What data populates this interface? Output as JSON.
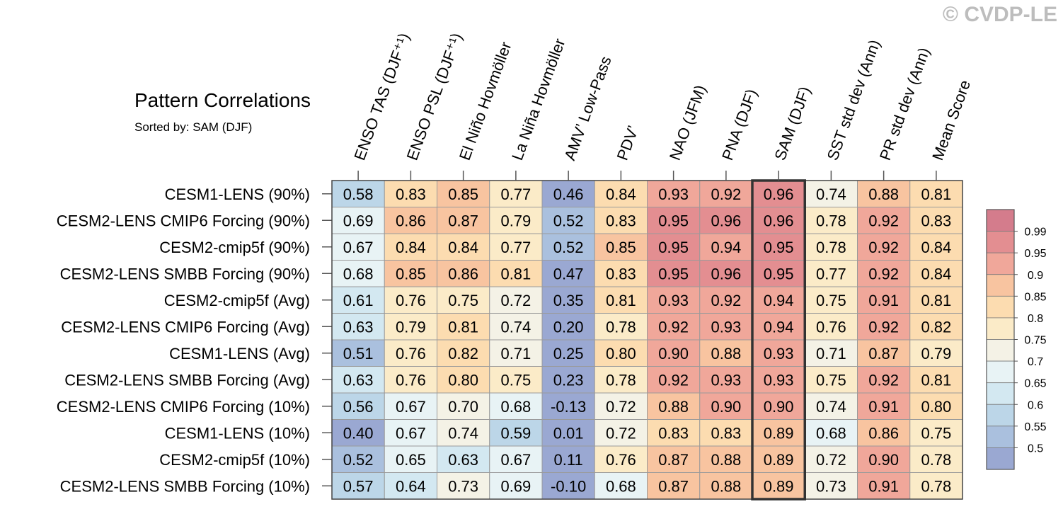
{
  "watermark": "© CVDP-LE",
  "title": "Pattern Correlations",
  "subtitle": "Sorted by: SAM (DJF)",
  "chart_data": {
    "type": "heatmap",
    "highlight_column": "SAM (DJF)",
    "columns": [
      "ENSO TAS (DJF⁺¹)",
      "ENSO PSL (DJF⁺¹)",
      "El Niño Hovmöller",
      "La Niña Hovmöller",
      "AMV’ Low-Pass",
      "PDV’",
      "NAO (JFM)",
      "PNA (DJF)",
      "SAM (DJF)",
      "SST std dev (Ann)",
      "PR std dev (Ann)",
      "Mean Score"
    ],
    "rows": [
      {
        "label": "CESM1-LENS (90%)",
        "values": [
          "0.58",
          "0.83",
          "0.85",
          "0.77",
          "0.46",
          "0.84",
          "0.93",
          "0.92",
          "0.96",
          "0.74",
          "0.88",
          "0.81"
        ]
      },
      {
        "label": "CESM2-LENS CMIP6 Forcing (90%)",
        "values": [
          "0.69",
          "0.86",
          "0.87",
          "0.79",
          "0.52",
          "0.83",
          "0.95",
          "0.96",
          "0.96",
          "0.78",
          "0.92",
          "0.83"
        ]
      },
      {
        "label": "CESM2-cmip5f (90%)",
        "values": [
          "0.67",
          "0.84",
          "0.84",
          "0.77",
          "0.52",
          "0.85",
          "0.95",
          "0.94",
          "0.95",
          "0.78",
          "0.92",
          "0.84"
        ]
      },
      {
        "label": "CESM2-LENS SMBB Forcing (90%)",
        "values": [
          "0.68",
          "0.85",
          "0.86",
          "0.81",
          "0.47",
          "0.83",
          "0.95",
          "0.96",
          "0.95",
          "0.77",
          "0.92",
          "0.84"
        ]
      },
      {
        "label": "CESM2-cmip5f (Avg)",
        "values": [
          "0.61",
          "0.76",
          "0.75",
          "0.72",
          "0.35",
          "0.81",
          "0.93",
          "0.92",
          "0.94",
          "0.75",
          "0.91",
          "0.81"
        ]
      },
      {
        "label": "CESM2-LENS CMIP6 Forcing (Avg)",
        "values": [
          "0.63",
          "0.79",
          "0.81",
          "0.74",
          "0.20",
          "0.78",
          "0.92",
          "0.93",
          "0.94",
          "0.76",
          "0.92",
          "0.82"
        ]
      },
      {
        "label": "CESM1-LENS (Avg)",
        "values": [
          "0.51",
          "0.76",
          "0.82",
          "0.71",
          "0.25",
          "0.80",
          "0.90",
          "0.88",
          "0.93",
          "0.71",
          "0.87",
          "0.79"
        ]
      },
      {
        "label": "CESM2-LENS SMBB Forcing (Avg)",
        "values": [
          "0.63",
          "0.76",
          "0.80",
          "0.75",
          "0.23",
          "0.78",
          "0.92",
          "0.93",
          "0.93",
          "0.75",
          "0.92",
          "0.81"
        ]
      },
      {
        "label": "CESM2-LENS CMIP6 Forcing (10%)",
        "values": [
          "0.56",
          "0.67",
          "0.70",
          "0.68",
          "-0.13",
          "0.72",
          "0.88",
          "0.90",
          "0.90",
          "0.74",
          "0.91",
          "0.80"
        ]
      },
      {
        "label": "CESM1-LENS (10%)",
        "values": [
          "0.40",
          "0.67",
          "0.74",
          "0.59",
          "0.01",
          "0.72",
          "0.83",
          "0.83",
          "0.89",
          "0.68",
          "0.86",
          "0.75"
        ]
      },
      {
        "label": "CESM2-cmip5f (10%)",
        "values": [
          "0.52",
          "0.65",
          "0.63",
          "0.67",
          "0.11",
          "0.76",
          "0.87",
          "0.88",
          "0.89",
          "0.72",
          "0.90",
          "0.78"
        ]
      },
      {
        "label": "CESM2-LENS SMBB Forcing (10%)",
        "values": [
          "0.57",
          "0.64",
          "0.73",
          "0.69",
          "-0.10",
          "0.68",
          "0.87",
          "0.88",
          "0.89",
          "0.73",
          "0.91",
          "0.78"
        ]
      }
    ],
    "colorbar": {
      "labels": [
        "0.99",
        "0.95",
        "0.9",
        "0.85",
        "0.8",
        "0.75",
        "0.7",
        "0.65",
        "0.6",
        "0.55",
        "0.5"
      ],
      "levels": [
        0.5,
        0.55,
        0.6,
        0.65,
        0.7,
        0.75,
        0.8,
        0.85,
        0.9,
        0.95,
        0.99
      ],
      "colors": [
        "#9aa8d2",
        "#aac0de",
        "#bcd6e8",
        "#d3e8f1",
        "#e8f3f5",
        "#f4f2e6",
        "#fbebc8",
        "#fcdcb0",
        "#f8c4a0",
        "#f0a79a",
        "#e38e91",
        "#d47c8c"
      ]
    }
  }
}
